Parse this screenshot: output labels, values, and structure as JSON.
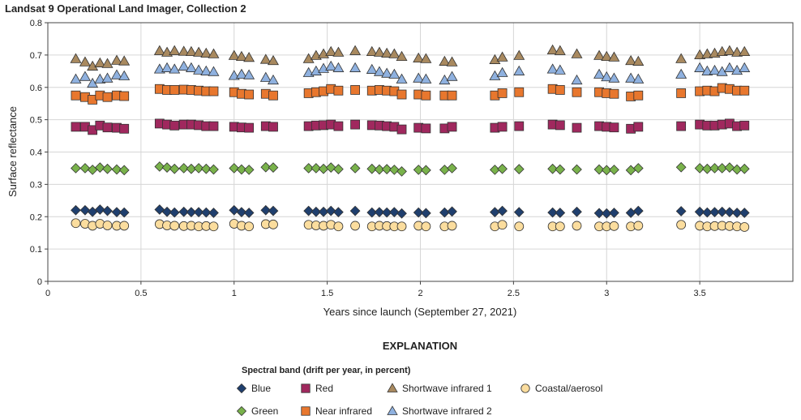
{
  "chart_data": {
    "type": "scatter",
    "title": "Landsat 9 Operational Land Imager, Collection 2",
    "xlabel": "Years since launch (September 27, 2021)",
    "ylabel": "Surface reflectance",
    "xlim": [
      0,
      4
    ],
    "ylim": [
      0,
      0.8
    ],
    "xticks": [
      0,
      0.5,
      1,
      1.5,
      2,
      2.5,
      3,
      3.5
    ],
    "yticks": [
      0,
      0.1,
      0.2,
      0.3,
      0.4,
      0.5,
      0.6,
      0.7,
      0.8
    ],
    "x": [
      0.15,
      0.2,
      0.24,
      0.28,
      0.32,
      0.37,
      0.41,
      0.6,
      0.64,
      0.68,
      0.73,
      0.77,
      0.81,
      0.85,
      0.89,
      1.0,
      1.04,
      1.08,
      1.17,
      1.21,
      1.4,
      1.44,
      1.48,
      1.52,
      1.56,
      1.65,
      1.74,
      1.78,
      1.82,
      1.86,
      1.9,
      1.99,
      2.03,
      2.13,
      2.17,
      2.4,
      2.44,
      2.53,
      2.71,
      2.75,
      2.84,
      2.96,
      3.0,
      3.04,
      3.13,
      3.17,
      3.4,
      3.5,
      3.54,
      3.58,
      3.62,
      3.66,
      3.7,
      3.74
    ],
    "series": [
      {
        "name": "Shortwave infrared 1",
        "marker": "triangle",
        "color": "#a8895f",
        "values": [
          0.688,
          0.678,
          0.665,
          0.675,
          0.673,
          0.683,
          0.681,
          0.713,
          0.708,
          0.713,
          0.711,
          0.71,
          0.708,
          0.705,
          0.703,
          0.698,
          0.695,
          0.692,
          0.686,
          0.682,
          0.688,
          0.698,
          0.703,
          0.71,
          0.708,
          0.713,
          0.71,
          0.708,
          0.705,
          0.703,
          0.695,
          0.69,
          0.688,
          0.68,
          0.678,
          0.685,
          0.693,
          0.698,
          0.715,
          0.713,
          0.703,
          0.698,
          0.695,
          0.693,
          0.682,
          0.68,
          0.688,
          0.7,
          0.703,
          0.705,
          0.71,
          0.713,
          0.708,
          0.71
        ]
      },
      {
        "name": "Shortwave infrared 2",
        "marker": "triangle-tip",
        "color": "#8fb1df",
        "values": [
          0.625,
          0.633,
          0.612,
          0.625,
          0.628,
          0.638,
          0.635,
          0.656,
          0.66,
          0.656,
          0.665,
          0.66,
          0.653,
          0.65,
          0.648,
          0.636,
          0.64,
          0.638,
          0.63,
          0.622,
          0.645,
          0.65,
          0.658,
          0.665,
          0.66,
          0.66,
          0.655,
          0.648,
          0.643,
          0.64,
          0.625,
          0.628,
          0.625,
          0.622,
          0.633,
          0.635,
          0.645,
          0.65,
          0.656,
          0.653,
          0.622,
          0.64,
          0.632,
          0.628,
          0.628,
          0.625,
          0.64,
          0.66,
          0.65,
          0.652,
          0.648,
          0.66,
          0.652,
          0.66
        ]
      },
      {
        "name": "Near infrared",
        "marker": "square",
        "color": "#e8772e",
        "values": [
          0.575,
          0.57,
          0.562,
          0.575,
          0.57,
          0.575,
          0.573,
          0.595,
          0.592,
          0.592,
          0.593,
          0.592,
          0.59,
          0.588,
          0.588,
          0.585,
          0.58,
          0.578,
          0.58,
          0.575,
          0.582,
          0.585,
          0.588,
          0.595,
          0.59,
          0.592,
          0.59,
          0.592,
          0.59,
          0.588,
          0.578,
          0.578,
          0.575,
          0.575,
          0.575,
          0.575,
          0.582,
          0.585,
          0.595,
          0.592,
          0.585,
          0.585,
          0.582,
          0.58,
          0.572,
          0.575,
          0.582,
          0.588,
          0.59,
          0.588,
          0.598,
          0.595,
          0.59,
          0.59
        ]
      },
      {
        "name": "Red",
        "marker": "square",
        "color": "#a0285e",
        "values": [
          0.478,
          0.478,
          0.468,
          0.482,
          0.476,
          0.475,
          0.472,
          0.488,
          0.485,
          0.482,
          0.485,
          0.485,
          0.483,
          0.48,
          0.48,
          0.478,
          0.476,
          0.475,
          0.48,
          0.478,
          0.48,
          0.482,
          0.483,
          0.485,
          0.48,
          0.485,
          0.483,
          0.482,
          0.48,
          0.478,
          0.47,
          0.475,
          0.473,
          0.473,
          0.478,
          0.475,
          0.478,
          0.48,
          0.485,
          0.483,
          0.475,
          0.48,
          0.478,
          0.476,
          0.472,
          0.478,
          0.48,
          0.485,
          0.482,
          0.482,
          0.485,
          0.488,
          0.48,
          0.482
        ]
      },
      {
        "name": "Green",
        "marker": "diamond",
        "color": "#79b24b",
        "values": [
          0.35,
          0.35,
          0.345,
          0.352,
          0.348,
          0.346,
          0.344,
          0.355,
          0.352,
          0.348,
          0.35,
          0.348,
          0.35,
          0.348,
          0.346,
          0.35,
          0.346,
          0.345,
          0.353,
          0.352,
          0.35,
          0.35,
          0.348,
          0.352,
          0.347,
          0.35,
          0.348,
          0.346,
          0.347,
          0.345,
          0.34,
          0.345,
          0.344,
          0.345,
          0.35,
          0.345,
          0.348,
          0.347,
          0.348,
          0.346,
          0.346,
          0.346,
          0.344,
          0.345,
          0.344,
          0.35,
          0.353,
          0.35,
          0.348,
          0.35,
          0.35,
          0.352,
          0.346,
          0.348
        ]
      },
      {
        "name": "Blue",
        "marker": "diamond",
        "color": "#1f3f6e",
        "values": [
          0.22,
          0.22,
          0.215,
          0.222,
          0.218,
          0.214,
          0.213,
          0.222,
          0.215,
          0.213,
          0.215,
          0.214,
          0.214,
          0.213,
          0.212,
          0.22,
          0.214,
          0.212,
          0.22,
          0.218,
          0.218,
          0.215,
          0.215,
          0.218,
          0.214,
          0.218,
          0.213,
          0.214,
          0.213,
          0.214,
          0.21,
          0.213,
          0.211,
          0.213,
          0.216,
          0.214,
          0.218,
          0.214,
          0.213,
          0.212,
          0.215,
          0.211,
          0.21,
          0.212,
          0.212,
          0.218,
          0.217,
          0.215,
          0.213,
          0.214,
          0.215,
          0.214,
          0.212,
          0.212
        ]
      },
      {
        "name": "Coastal/aerosol",
        "marker": "circle",
        "color": "#fbdd9e",
        "values": [
          0.18,
          0.178,
          0.172,
          0.178,
          0.173,
          0.172,
          0.172,
          0.177,
          0.173,
          0.172,
          0.171,
          0.172,
          0.17,
          0.171,
          0.17,
          0.178,
          0.172,
          0.17,
          0.177,
          0.176,
          0.175,
          0.173,
          0.172,
          0.175,
          0.17,
          0.172,
          0.17,
          0.172,
          0.171,
          0.17,
          0.17,
          0.172,
          0.17,
          0.17,
          0.172,
          0.17,
          0.175,
          0.17,
          0.17,
          0.17,
          0.172,
          0.17,
          0.17,
          0.171,
          0.17,
          0.172,
          0.175,
          0.172,
          0.17,
          0.171,
          0.172,
          0.171,
          0.17,
          0.168
        ]
      }
    ],
    "legend": {
      "title": "EXPLANATION",
      "subtitle": "Spectral band (drift per year, in percent)",
      "placement": "bottom",
      "order": [
        "Blue",
        "Red",
        "Shortwave infrared 1",
        "Coastal/aerosol",
        "Green",
        "Near infrared",
        "Shortwave infrared 2"
      ]
    }
  }
}
